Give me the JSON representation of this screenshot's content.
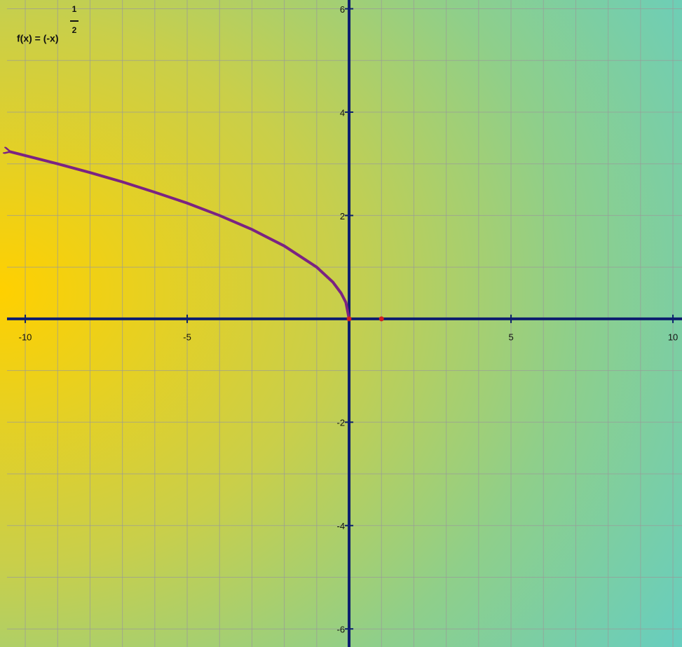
{
  "chart_data": {
    "type": "line",
    "formula": {
      "base": "f(x) = (-x)",
      "numerator": "1",
      "denominator": "2"
    },
    "x": [
      -10.5,
      -10,
      -9,
      -8,
      -7,
      -6,
      -5,
      -4,
      -3,
      -2,
      -1,
      -0.5,
      -0.25,
      -0.1,
      0
    ],
    "values": [
      3.24,
      3.16,
      3,
      2.83,
      2.65,
      2.45,
      2.24,
      2,
      1.73,
      1.41,
      1,
      0.71,
      0.5,
      0.32,
      0
    ],
    "color": "#7b2382",
    "points": {
      "x": [
        0,
        1
      ],
      "y": [
        0,
        0
      ],
      "color": "#d21f1f"
    },
    "xlim": [
      -10.78,
      10.28
    ],
    "ylim": [
      -6.35,
      6.17
    ],
    "xticks": [
      -10,
      -5,
      5,
      10
    ],
    "yticks": [
      -6,
      -4,
      -2,
      2,
      4,
      6
    ],
    "xgrid": [
      -10,
      -9,
      -8,
      -7,
      -6,
      -5,
      -4,
      -3,
      -2,
      -1,
      1,
      2,
      3,
      4,
      5,
      6,
      7,
      8,
      9,
      10
    ],
    "ygrid": [
      -6,
      -5,
      -4,
      -3,
      -2,
      -1,
      1,
      2,
      3,
      4,
      5,
      6
    ],
    "grid": true
  }
}
